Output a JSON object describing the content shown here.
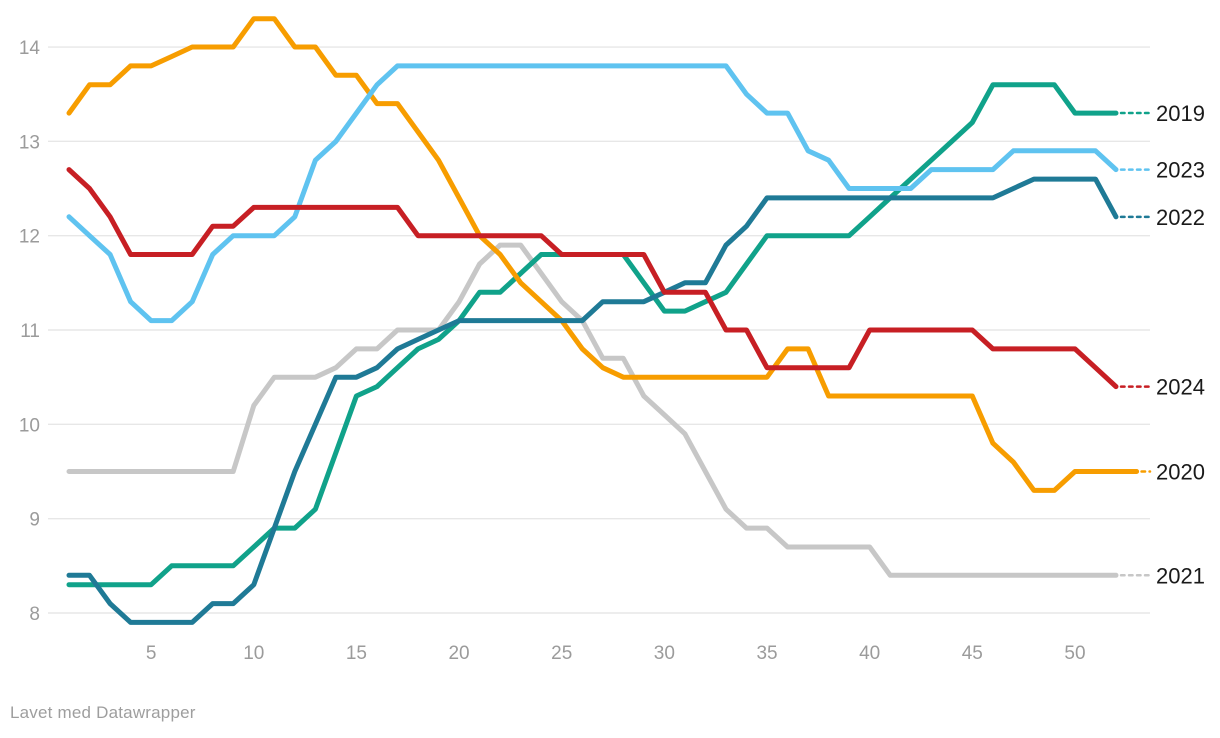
{
  "caption": "Lavet med Datawrapper",
  "colors": {
    "background": "#ffffff",
    "gridline": "#e7e7e7",
    "axis_text": "#9b9b9b",
    "series_label_text": "#1a1a1a",
    "caption_text": "#9e9e9e"
  },
  "chart_data": {
    "type": "line",
    "title": "",
    "xlabel": "",
    "ylabel": "",
    "x_unit": "week-of-year",
    "xlim": [
      1,
      53
    ],
    "ylim": [
      7.75,
      14.45
    ],
    "x_ticks": [
      5,
      10,
      15,
      20,
      25,
      30,
      35,
      40,
      45,
      50
    ],
    "y_ticks": [
      8,
      9,
      10,
      11,
      12,
      13,
      14
    ],
    "grid": "horizontal",
    "legend_position": "right-edge-direct-labels",
    "line_style": "stepped-weekly, rounded joins",
    "series": [
      {
        "name": "2021",
        "color": "#c7c7c7",
        "end_value": 8.4,
        "values": [
          9.5,
          9.5,
          9.5,
          9.5,
          9.5,
          9.5,
          9.5,
          9.5,
          9.5,
          10.2,
          10.5,
          10.5,
          10.5,
          10.6,
          10.8,
          10.8,
          11.0,
          11.0,
          11.0,
          11.3,
          11.7,
          11.9,
          11.9,
          11.6,
          11.3,
          11.1,
          10.7,
          10.7,
          10.3,
          10.1,
          9.9,
          9.5,
          9.1,
          8.9,
          8.9,
          8.7,
          8.7,
          8.7,
          8.7,
          8.7,
          8.4,
          8.4,
          8.4,
          8.4,
          8.4,
          8.4,
          8.4,
          8.4,
          8.4,
          8.4,
          8.4,
          8.4
        ]
      },
      {
        "name": "2019",
        "color": "#10a28a",
        "end_value": 13.3,
        "values": [
          8.3,
          8.3,
          8.3,
          8.3,
          8.3,
          8.5,
          8.5,
          8.5,
          8.5,
          8.7,
          8.9,
          8.9,
          9.1,
          9.7,
          10.3,
          10.4,
          10.6,
          10.8,
          10.9,
          11.1,
          11.4,
          11.4,
          11.6,
          11.8,
          11.8,
          11.8,
          11.8,
          11.8,
          11.5,
          11.2,
          11.2,
          11.3,
          11.4,
          11.7,
          12.0,
          12.0,
          12.0,
          12.0,
          12.0,
          12.2,
          12.4,
          12.6,
          12.8,
          13.0,
          13.2,
          13.6,
          13.6,
          13.6,
          13.6,
          13.3,
          13.3,
          13.3
        ]
      },
      {
        "name": "2020",
        "color": "#f79d00",
        "end_value": 9.5,
        "values": [
          13.3,
          13.6,
          13.6,
          13.8,
          13.8,
          13.9,
          14.0,
          14.0,
          14.0,
          14.3,
          14.3,
          14.0,
          14.0,
          13.7,
          13.7,
          13.4,
          13.4,
          13.1,
          12.8,
          12.4,
          12.0,
          11.8,
          11.5,
          11.3,
          11.1,
          10.8,
          10.6,
          10.5,
          10.5,
          10.5,
          10.5,
          10.5,
          10.5,
          10.5,
          10.5,
          10.8,
          10.8,
          10.3,
          10.3,
          10.3,
          10.3,
          10.3,
          10.3,
          10.3,
          10.3,
          9.8,
          9.6,
          9.3,
          9.3,
          9.5,
          9.5,
          9.5,
          9.5
        ]
      },
      {
        "name": "2022",
        "color": "#1f7a96",
        "end_value": 12.2,
        "values": [
          8.4,
          8.4,
          8.1,
          7.9,
          7.9,
          7.9,
          7.9,
          8.1,
          8.1,
          8.3,
          8.9,
          9.5,
          10.0,
          10.5,
          10.5,
          10.6,
          10.8,
          10.9,
          11.0,
          11.1,
          11.1,
          11.1,
          11.1,
          11.1,
          11.1,
          11.1,
          11.3,
          11.3,
          11.3,
          11.4,
          11.5,
          11.5,
          11.9,
          12.1,
          12.4,
          12.4,
          12.4,
          12.4,
          12.4,
          12.4,
          12.4,
          12.4,
          12.4,
          12.4,
          12.4,
          12.4,
          12.5,
          12.6,
          12.6,
          12.6,
          12.6,
          12.2
        ]
      },
      {
        "name": "2023",
        "color": "#5fc3f0",
        "end_value": 12.7,
        "values": [
          12.2,
          12.0,
          11.8,
          11.3,
          11.1,
          11.1,
          11.3,
          11.8,
          12.0,
          12.0,
          12.0,
          12.2,
          12.8,
          13.0,
          13.3,
          13.6,
          13.8,
          13.8,
          13.8,
          13.8,
          13.8,
          13.8,
          13.8,
          13.8,
          13.8,
          13.8,
          13.8,
          13.8,
          13.8,
          13.8,
          13.8,
          13.8,
          13.8,
          13.5,
          13.3,
          13.3,
          12.9,
          12.8,
          12.5,
          12.5,
          12.5,
          12.5,
          12.7,
          12.7,
          12.7,
          12.7,
          12.9,
          12.9,
          12.9,
          12.9,
          12.9,
          12.7
        ]
      },
      {
        "name": "2024",
        "color": "#c71f24",
        "end_value": 10.4,
        "values": [
          12.7,
          12.5,
          12.2,
          11.8,
          11.8,
          11.8,
          11.8,
          12.1,
          12.1,
          12.3,
          12.3,
          12.3,
          12.3,
          12.3,
          12.3,
          12.3,
          12.3,
          12.0,
          12.0,
          12.0,
          12.0,
          12.0,
          12.0,
          12.0,
          11.8,
          11.8,
          11.8,
          11.8,
          11.8,
          11.4,
          11.4,
          11.4,
          11.0,
          11.0,
          10.6,
          10.6,
          10.6,
          10.6,
          10.6,
          11.0,
          11.0,
          11.0,
          11.0,
          11.0,
          11.0,
          10.8,
          10.8,
          10.8,
          10.8,
          10.8,
          10.6,
          10.4
        ]
      }
    ],
    "right_labels_top_to_bottom": [
      "2019",
      "2023",
      "2022",
      "2024",
      "2020",
      "2021"
    ]
  }
}
